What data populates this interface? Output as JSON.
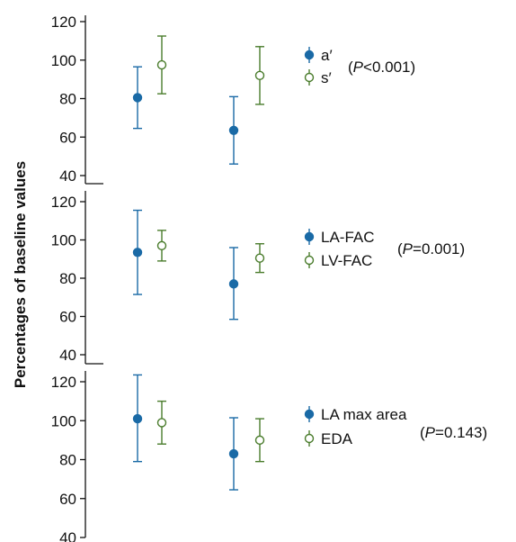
{
  "chart_data": [
    {
      "type": "scatter",
      "subtype": "error-bar",
      "ylim": [
        40,
        120
      ],
      "yticks": [
        40,
        60,
        80,
        100,
        120
      ],
      "groups": 2,
      "grid": false,
      "legend_position": "right",
      "series": [
        {
          "name": "a′",
          "marker": "filled-circle",
          "color": "#1a6aa6",
          "values": [
            {
              "group": 1,
              "mean": 80.5,
              "lower": 64.5,
              "upper": 96.5
            },
            {
              "group": 2,
              "mean": 63.5,
              "lower": 46,
              "upper": 81
            }
          ]
        },
        {
          "name": "s′",
          "marker": "open-circle",
          "color": "#4a7c2c",
          "values": [
            {
              "group": 1,
              "mean": 97.5,
              "lower": 82.5,
              "upper": 112.5
            },
            {
              "group": 2,
              "mean": 92,
              "lower": 77,
              "upper": 107
            }
          ]
        }
      ],
      "p_value": {
        "label": "P",
        "op": "<0.001"
      }
    },
    {
      "type": "scatter",
      "subtype": "error-bar",
      "ylim": [
        40,
        120
      ],
      "yticks": [
        40,
        60,
        80,
        100,
        120
      ],
      "groups": 2,
      "grid": false,
      "legend_position": "right",
      "series": [
        {
          "name": "LA-FAC",
          "marker": "filled-circle",
          "color": "#1a6aa6",
          "values": [
            {
              "group": 1,
              "mean": 93.5,
              "lower": 71.5,
              "upper": 115.5
            },
            {
              "group": 2,
              "mean": 77,
              "lower": 58.5,
              "upper": 96
            }
          ]
        },
        {
          "name": "LV-FAC",
          "marker": "open-circle",
          "color": "#4a7c2c",
          "values": [
            {
              "group": 1,
              "mean": 97,
              "lower": 89,
              "upper": 105
            },
            {
              "group": 2,
              "mean": 90.5,
              "lower": 83,
              "upper": 98
            }
          ]
        }
      ],
      "p_value": {
        "label": "P",
        "op": "=0.001"
      }
    },
    {
      "type": "scatter",
      "subtype": "error-bar",
      "ylim": [
        40,
        120
      ],
      "yticks": [
        40,
        60,
        80,
        100,
        120
      ],
      "groups": 2,
      "grid": false,
      "legend_position": "right",
      "series": [
        {
          "name": "LA max area",
          "marker": "filled-circle",
          "color": "#1a6aa6",
          "values": [
            {
              "group": 1,
              "mean": 101,
              "lower": 79,
              "upper": 123.5
            },
            {
              "group": 2,
              "mean": 83,
              "lower": 64.5,
              "upper": 101.5
            }
          ]
        },
        {
          "name": "EDA",
          "marker": "open-circle",
          "color": "#4a7c2c",
          "values": [
            {
              "group": 1,
              "mean": 99,
              "lower": 88,
              "upper": 110
            }
          ]
        },
        {
          "name": "EDA_g2",
          "marker": "open-circle",
          "color": "#4a7c2c",
          "values": [
            {
              "group": 2,
              "mean": 90,
              "lower": 79,
              "upper": 101
            }
          ]
        }
      ],
      "p_value": {
        "label": "P",
        "op": "=0.143"
      }
    }
  ],
  "ylabel": "Percentages of baseline values"
}
